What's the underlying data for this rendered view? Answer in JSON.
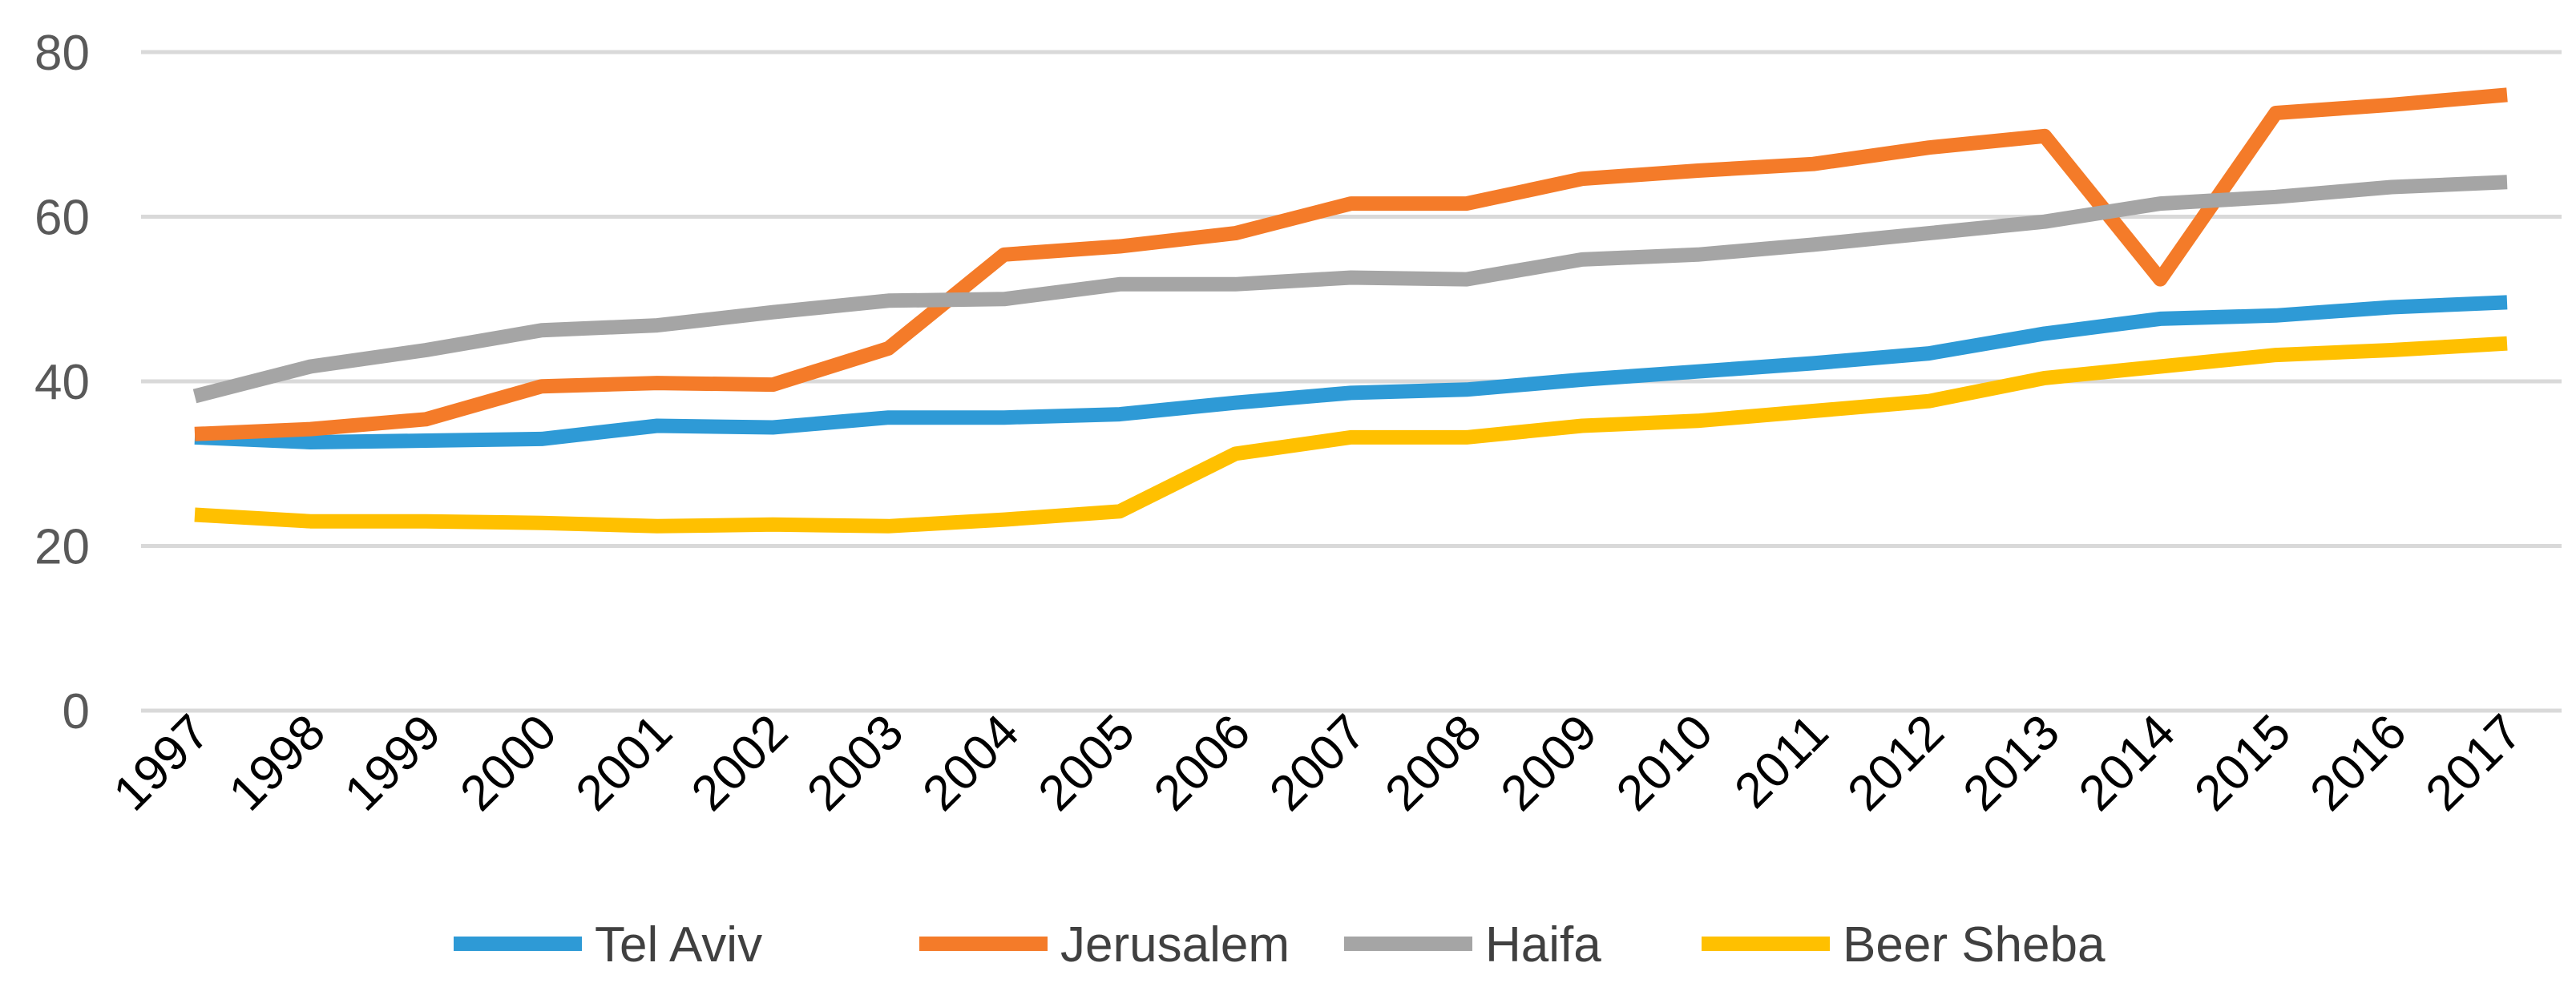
{
  "chart_data": {
    "type": "line",
    "title": "",
    "xlabel": "",
    "ylabel": "",
    "ylim": [
      0,
      80
    ],
    "yticks": [
      0,
      20,
      40,
      60,
      80
    ],
    "grid": true,
    "legend_position": "bottom",
    "categories": [
      "1997",
      "1998",
      "1999",
      "2000",
      "2001",
      "2002",
      "2003",
      "2004",
      "2005",
      "2006",
      "2007",
      "2008",
      "2009",
      "2010",
      "2011",
      "2012",
      "2013",
      "2014",
      "2015",
      "2016",
      "2017"
    ],
    "series": [
      {
        "name": "Tel Aviv",
        "color": "#2e9ad6",
        "values": [
          33.2,
          32.6,
          32.8,
          33.0,
          34.6,
          34.4,
          35.6,
          35.6,
          36.0,
          37.4,
          38.6,
          39.0,
          40.2,
          41.2,
          42.2,
          43.4,
          45.8,
          47.6,
          48.0,
          49.0,
          49.6
        ]
      },
      {
        "name": "Jerusalem",
        "color": "#f47b29",
        "values": [
          33.6,
          34.2,
          35.4,
          39.4,
          39.8,
          39.6,
          44.0,
          55.4,
          56.4,
          58.0,
          61.6,
          61.6,
          64.6,
          65.6,
          66.4,
          68.4,
          69.8,
          52.4,
          72.6,
          73.6,
          74.8
        ]
      },
      {
        "name": "Haifa",
        "color": "#a5a5a5",
        "values": [
          38.2,
          41.8,
          43.8,
          46.2,
          46.8,
          48.4,
          49.8,
          50.0,
          51.8,
          51.8,
          52.6,
          52.4,
          54.8,
          55.4,
          56.6,
          58.0,
          59.4,
          61.6,
          62.4,
          63.6,
          64.2
        ]
      },
      {
        "name": "Beer Sheba",
        "color": "#ffc000",
        "values": [
          23.8,
          23.0,
          23.0,
          22.8,
          22.4,
          22.6,
          22.4,
          23.2,
          24.2,
          31.2,
          33.2,
          33.2,
          34.6,
          35.2,
          36.4,
          37.6,
          40.4,
          41.8,
          43.2,
          43.8,
          44.6
        ]
      }
    ]
  }
}
